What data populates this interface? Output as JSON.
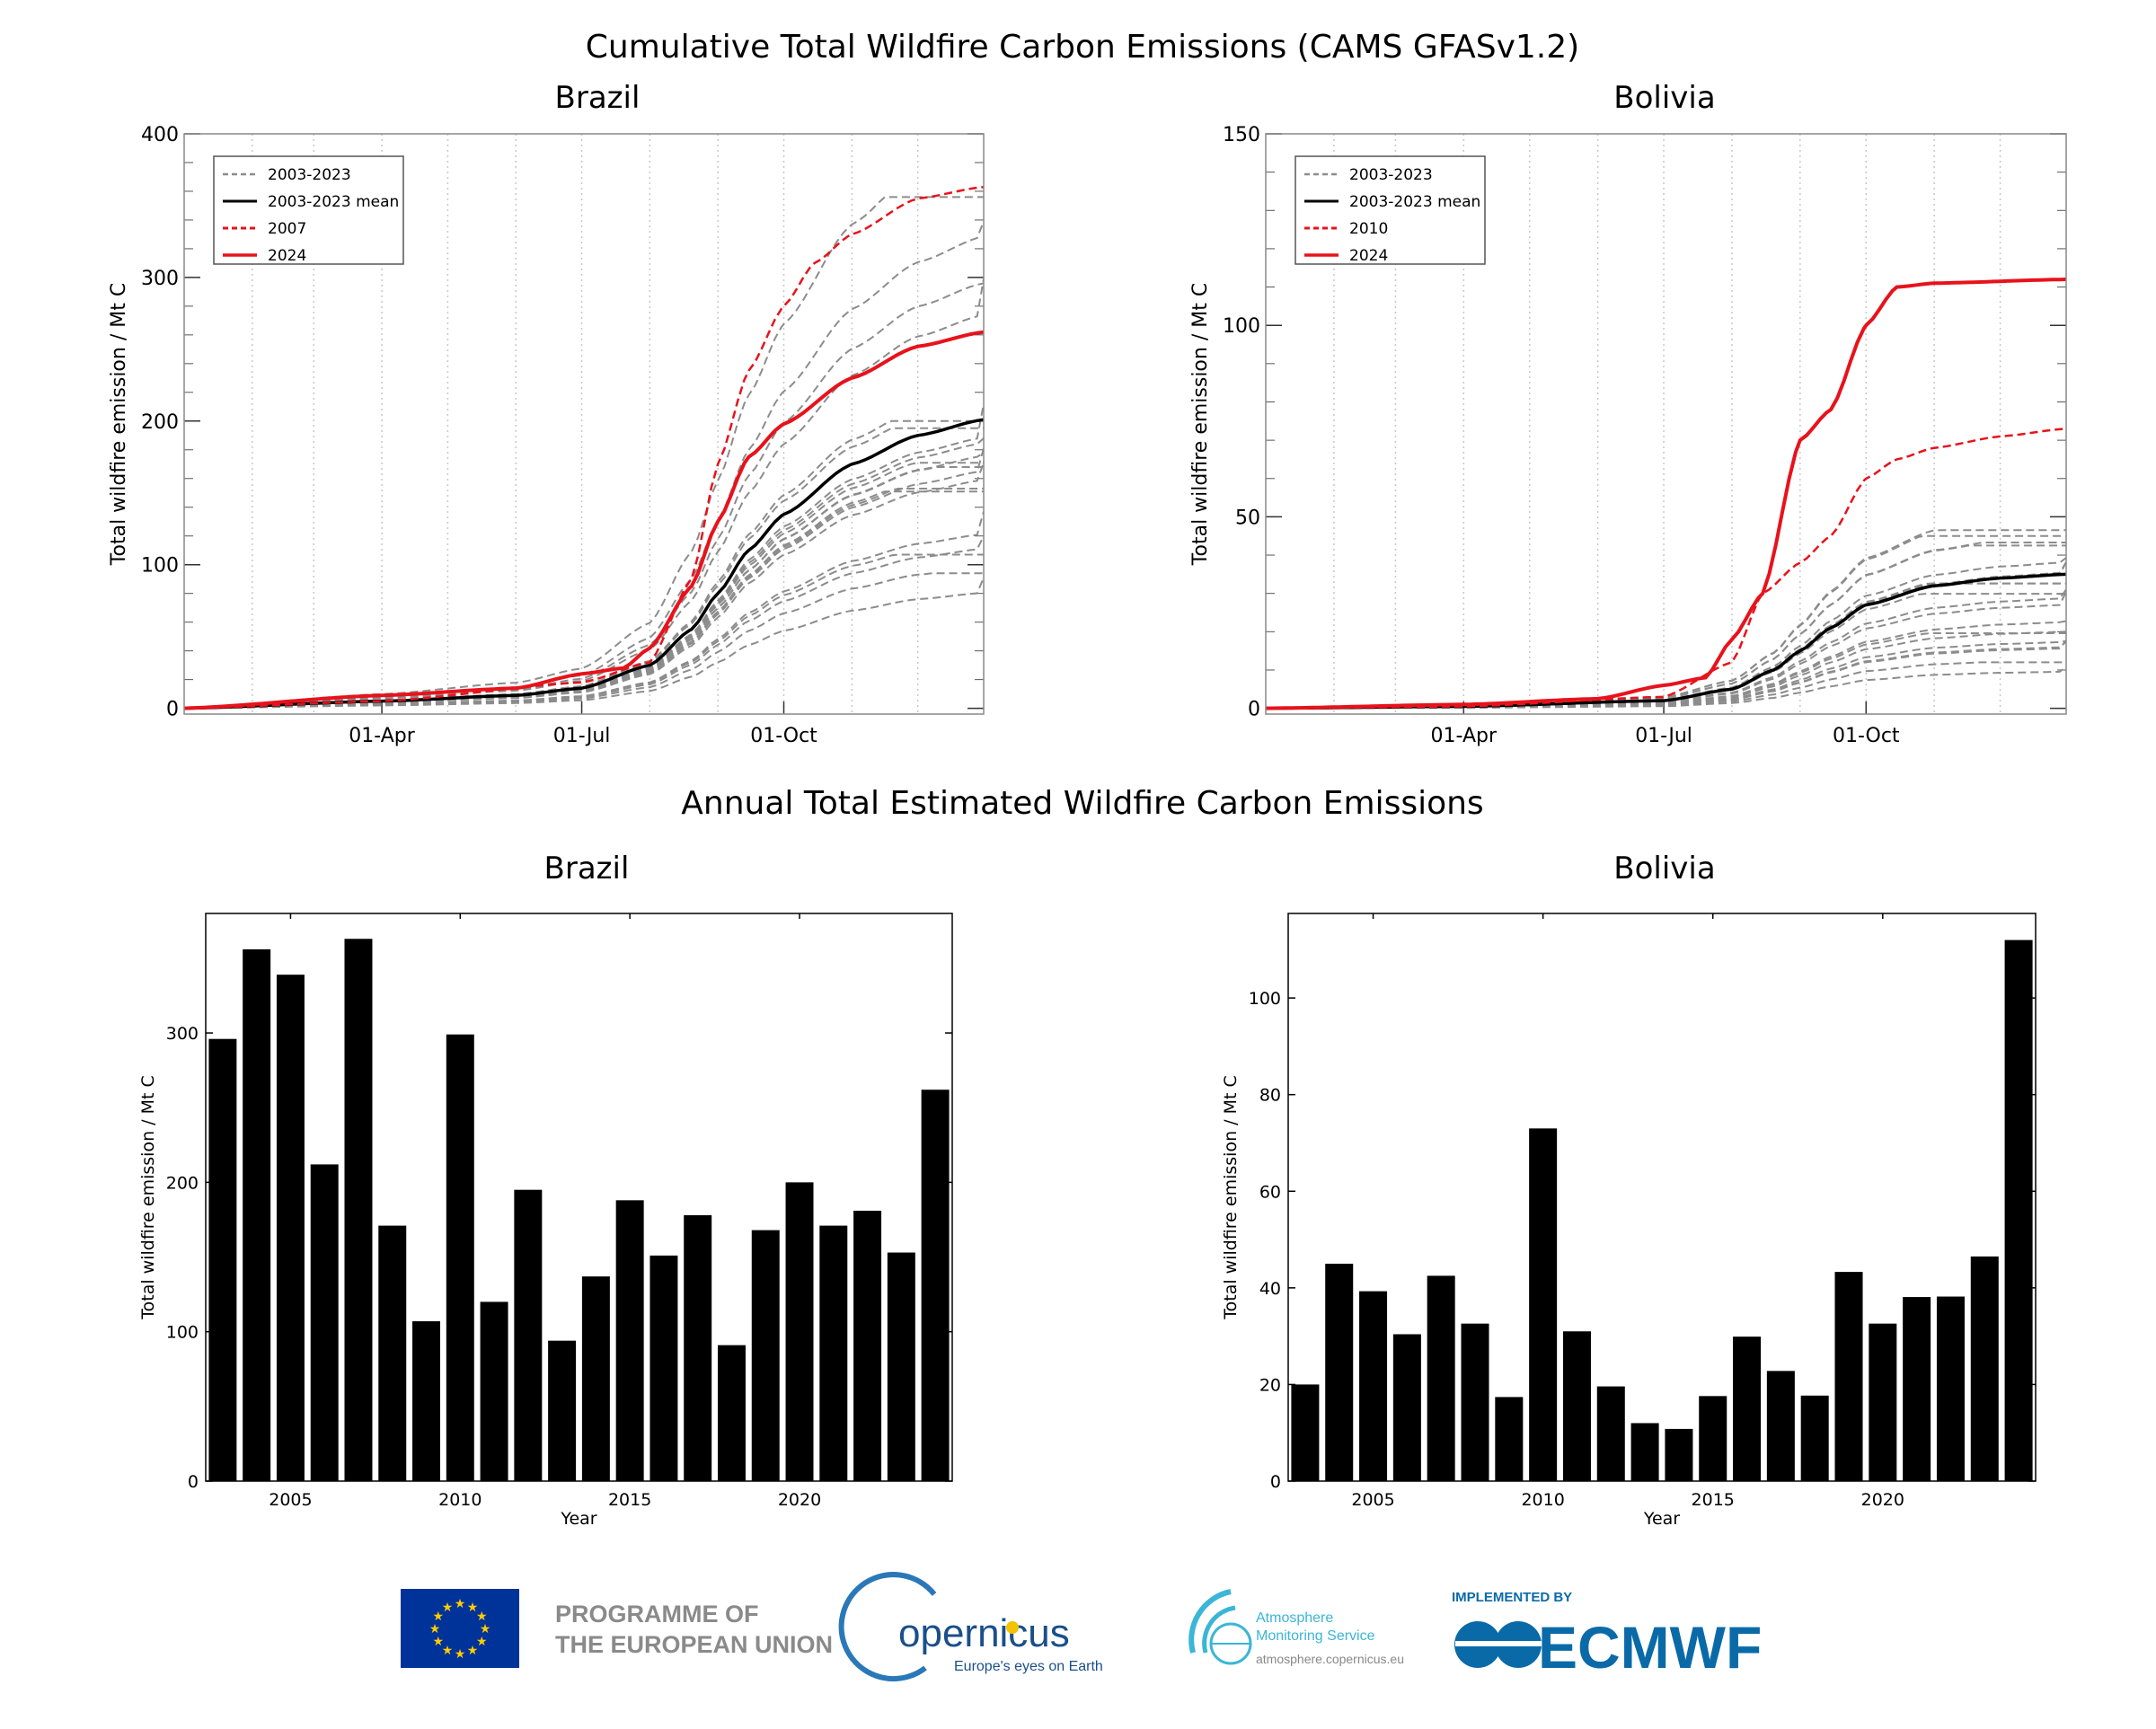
{
  "top_title": "Cumulative Total Wildfire Carbon Emissions (CAMS GFASv1.2)",
  "bottom_title": "Annual Total Estimated Wildfire Carbon Emissions",
  "footer": {
    "eu_line1": "PROGRAMME OF",
    "eu_line2": "THE EUROPEAN UNION",
    "copernicus": "opernicus",
    "copernicus_tagline": "Europe's eyes on Earth",
    "cams_line1": "Atmosphere",
    "cams_line2": "Monitoring Service",
    "cams_url": "atmosphere.copernicus.eu",
    "implemented_by": "IMPLEMENTED BY",
    "ecmwf": "ECMWF",
    "colors": {
      "eu_blue": "#003399",
      "eu_star": "#ffcc00",
      "grey_text": "#8a8a8a",
      "copernicus_blue": "#1a4f8a",
      "cams_cyan": "#3bb6d6",
      "ecmwf_blue": "#0a6aa8"
    }
  },
  "chart_data": [
    {
      "type": "line",
      "title": "Brazil",
      "ylabel": "Total wildfire emission / Mt C",
      "xlabel": "",
      "xlim": [
        "01-01",
        "12-31"
      ],
      "xticks": [
        {
          "date": "04-01",
          "label": "01-Apr"
        },
        {
          "date": "07-01",
          "label": "01-Jul"
        },
        {
          "date": "10-01",
          "label": "01-Oct"
        }
      ],
      "ylim": [
        -4,
        400
      ],
      "yticks": [
        0,
        100,
        200,
        300,
        400
      ],
      "grid": "vertical dotted monthly",
      "legend_position": "top-left",
      "legend": [
        "2003-2023",
        "2003-2023 mean",
        "2007",
        "2024"
      ],
      "colors": {
        "history": "#8c8c8c",
        "mean": "#000000",
        "highlight": "#e8121b",
        "current": "#e8121b"
      },
      "history_final_values": {
        "2003": 296,
        "2004": 356,
        "2005": 339,
        "2006": 212,
        "2008": 171,
        "2009": 107,
        "2010": 299,
        "2011": 120,
        "2012": 195,
        "2013": 94,
        "2014": 137,
        "2015": 188,
        "2016": 151,
        "2017": 178,
        "2018": 91,
        "2019": 168,
        "2020": 200,
        "2021": 171,
        "2022": 181,
        "2023": 153
      },
      "series": [
        {
          "name": "2003-2023 mean",
          "style": "mean",
          "points": [
            [
              "01-01",
              0
            ],
            [
              "04-01",
              5
            ],
            [
              "06-01",
              9
            ],
            [
              "07-01",
              14
            ],
            [
              "08-01",
              30
            ],
            [
              "08-20",
              55
            ],
            [
              "09-01",
              80
            ],
            [
              "09-15",
              110
            ],
            [
              "10-01",
              135
            ],
            [
              "11-01",
              170
            ],
            [
              "12-01",
              190
            ],
            [
              "12-31",
              201
            ]
          ]
        },
        {
          "name": "2007",
          "style": "highlight",
          "points": [
            [
              "01-01",
              0
            ],
            [
              "04-01",
              5
            ],
            [
              "07-01",
              18
            ],
            [
              "08-01",
              32
            ],
            [
              "08-20",
              90
            ],
            [
              "09-01",
              170
            ],
            [
              "09-15",
              235
            ],
            [
              "10-01",
              280
            ],
            [
              "10-15",
              310
            ],
            [
              "11-01",
              330
            ],
            [
              "12-01",
              355
            ],
            [
              "12-31",
              363
            ]
          ]
        },
        {
          "name": "2024",
          "style": "current",
          "points": [
            [
              "01-01",
              0
            ],
            [
              "04-01",
              9
            ],
            [
              "06-01",
              14
            ],
            [
              "07-01",
              24
            ],
            [
              "07-20",
              28
            ],
            [
              "08-01",
              42
            ],
            [
              "08-20",
              85
            ],
            [
              "09-01",
              130
            ],
            [
              "09-15",
              175
            ],
            [
              "10-01",
              198
            ],
            [
              "11-01",
              230
            ],
            [
              "12-01",
              252
            ],
            [
              "12-31",
              262
            ]
          ]
        }
      ]
    },
    {
      "type": "line",
      "title": "Bolivia",
      "ylabel": "Total wildfire emission / Mt C",
      "xlabel": "",
      "xlim": [
        "01-01",
        "12-31"
      ],
      "xticks": [
        {
          "date": "04-01",
          "label": "01-Apr"
        },
        {
          "date": "07-01",
          "label": "01-Jul"
        },
        {
          "date": "10-01",
          "label": "01-Oct"
        }
      ],
      "ylim": [
        -1.5,
        150
      ],
      "yticks": [
        0,
        50,
        100,
        150
      ],
      "grid": "vertical dotted monthly",
      "legend_position": "top-left",
      "legend": [
        "2003-2023",
        "2003-2023 mean",
        "2010",
        "2024"
      ],
      "colors": {
        "history": "#8c8c8c",
        "mean": "#000000",
        "highlight": "#e8121b",
        "current": "#e8121b"
      },
      "history_final_values": {
        "2003": 20,
        "2004": 45,
        "2005": 39.3,
        "2006": 30.4,
        "2007": 42.5,
        "2008": 32.6,
        "2009": 17.4,
        "2011": 31,
        "2012": 19.6,
        "2013": 12,
        "2014": 10.8,
        "2015": 17.6,
        "2016": 29.9,
        "2017": 22.8,
        "2018": 17.7,
        "2019": 43.3,
        "2020": 32.6,
        "2021": 38.1,
        "2022": 38.2,
        "2023": 46.5
      },
      "series": [
        {
          "name": "2003-2023 mean",
          "style": "mean",
          "points": [
            [
              "01-01",
              0
            ],
            [
              "04-01",
              0.5
            ],
            [
              "07-01",
              2
            ],
            [
              "08-01",
              5
            ],
            [
              "08-20",
              10
            ],
            [
              "09-01",
              15
            ],
            [
              "09-15",
              21
            ],
            [
              "10-01",
              27
            ],
            [
              "11-01",
              32
            ],
            [
              "12-01",
              34
            ],
            [
              "12-31",
              35
            ]
          ]
        },
        {
          "name": "2010",
          "style": "highlight",
          "points": [
            [
              "01-01",
              0
            ],
            [
              "04-01",
              0.5
            ],
            [
              "07-01",
              3
            ],
            [
              "08-01",
              12
            ],
            [
              "08-15",
              30
            ],
            [
              "09-01",
              38
            ],
            [
              "09-15",
              45
            ],
            [
              "10-01",
              60
            ],
            [
              "10-15",
              65
            ],
            [
              "11-01",
              68
            ],
            [
              "12-01",
              71
            ],
            [
              "12-31",
              73
            ]
          ]
        },
        {
          "name": "2024",
          "style": "current",
          "points": [
            [
              "01-01",
              0
            ],
            [
              "04-01",
              1
            ],
            [
              "06-01",
              2.5
            ],
            [
              "07-01",
              6
            ],
            [
              "07-20",
              8
            ],
            [
              "08-01",
              18
            ],
            [
              "08-15",
              30
            ],
            [
              "09-01",
              70
            ],
            [
              "09-15",
              78
            ],
            [
              "10-01",
              100
            ],
            [
              "10-15",
              110
            ],
            [
              "11-01",
              111
            ],
            [
              "12-31",
              112
            ]
          ]
        }
      ]
    },
    {
      "type": "bar",
      "title": "Brazil",
      "xlabel": "Year",
      "ylabel": "Total wildfire emission / Mt C",
      "categories": [
        2003,
        2004,
        2005,
        2006,
        2007,
        2008,
        2009,
        2010,
        2011,
        2012,
        2013,
        2014,
        2015,
        2016,
        2017,
        2018,
        2019,
        2020,
        2021,
        2022,
        2023,
        2024
      ],
      "values": [
        296,
        356,
        339,
        212,
        363,
        171,
        107,
        299,
        120,
        195,
        94,
        137,
        188,
        151,
        178,
        91,
        168,
        200,
        171,
        181,
        153,
        262
      ],
      "xticks": [
        2005,
        2010,
        2015,
        2020
      ],
      "xlim": [
        2002.5,
        2024.5
      ],
      "ylim": [
        0,
        380
      ],
      "yticks": [
        0,
        100,
        200,
        300
      ],
      "grid": false,
      "color": "#000000"
    },
    {
      "type": "bar",
      "title": "Bolivia",
      "xlabel": "Year",
      "ylabel": "Total wildfire emission / Mt C",
      "categories": [
        2003,
        2004,
        2005,
        2006,
        2007,
        2008,
        2009,
        2010,
        2011,
        2012,
        2013,
        2014,
        2015,
        2016,
        2017,
        2018,
        2019,
        2020,
        2021,
        2022,
        2023,
        2024
      ],
      "values": [
        20,
        45,
        39.3,
        30.4,
        42.5,
        32.6,
        17.4,
        73,
        31,
        19.6,
        12,
        10.8,
        17.6,
        29.9,
        22.8,
        17.7,
        43.3,
        32.6,
        38.1,
        38.2,
        46.5,
        112
      ],
      "xticks": [
        2005,
        2010,
        2015,
        2020
      ],
      "xlim": [
        2002.5,
        2024.5
      ],
      "ylim": [
        0,
        117.5
      ],
      "yticks": [
        0,
        20,
        40,
        60,
        80,
        100
      ],
      "grid": false,
      "color": "#000000"
    }
  ]
}
